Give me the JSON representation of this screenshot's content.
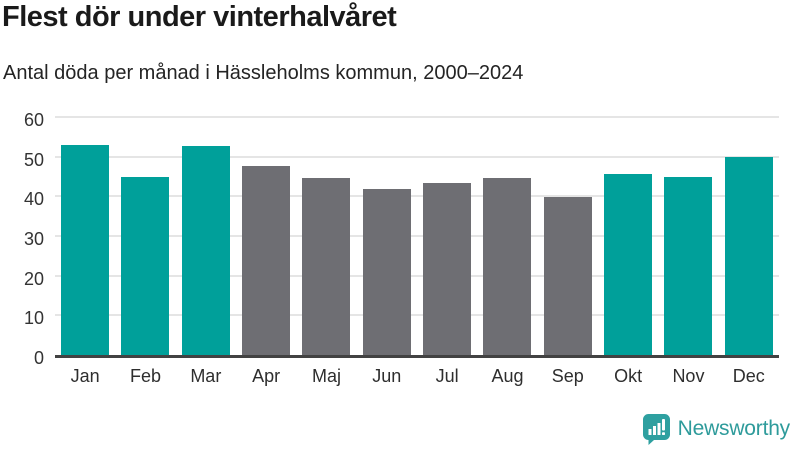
{
  "chart_data": {
    "type": "bar",
    "title": "Flest dör under vinterhalvåret",
    "subtitle": "Antal döda per månad i Hässleholms kommun, 2000–2024",
    "categories": [
      "Jan",
      "Feb",
      "Mar",
      "Apr",
      "Maj",
      "Jun",
      "Jul",
      "Aug",
      "Sep",
      "Okt",
      "Nov",
      "Dec"
    ],
    "values": [
      53,
      45,
      52.8,
      47.6,
      44.5,
      41.8,
      43.4,
      44.6,
      39.8,
      45.6,
      44.8,
      49.9
    ],
    "bar_styles": [
      "highlight",
      "highlight",
      "highlight",
      "muted",
      "muted",
      "muted",
      "muted",
      "muted",
      "muted",
      "highlight",
      "highlight",
      "highlight"
    ],
    "highlighted_months": [
      "Jan",
      "Feb",
      "Mar",
      "Okt",
      "Nov",
      "Dec"
    ],
    "xlabel": "",
    "ylabel": "",
    "ylim": [
      0,
      60
    ],
    "yticks": [
      0,
      10,
      20,
      30,
      40,
      50,
      60
    ],
    "grid": "horizontal",
    "legend": "none"
  },
  "colors": {
    "highlight": "#00a09a",
    "muted": "#6e6e73",
    "gridline": "#e5e5e5",
    "axis_line": "#424242",
    "brand_teal": "#2e9b9b"
  },
  "footer": {
    "brand_name": "Newsworthy"
  }
}
